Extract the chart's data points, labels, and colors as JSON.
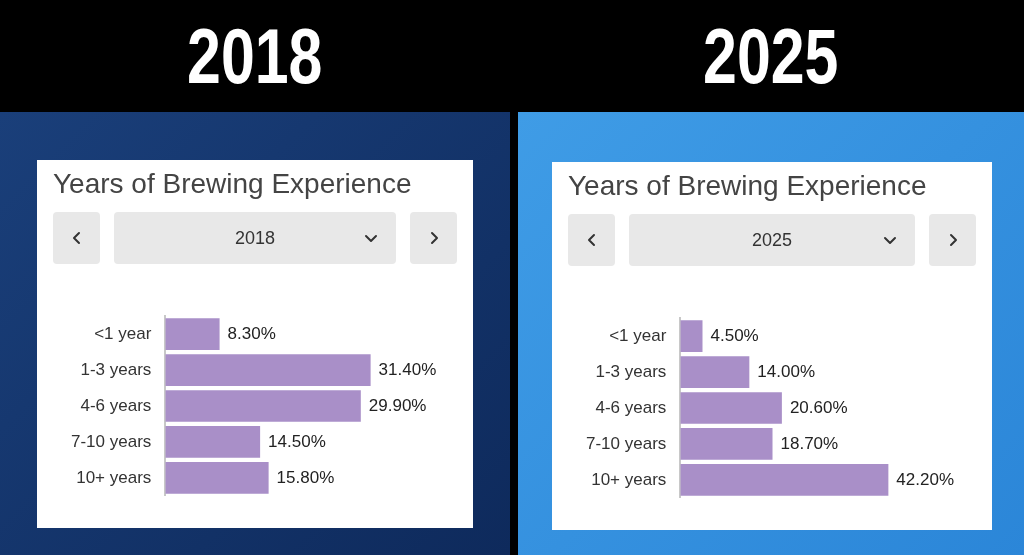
{
  "chart_data": [
    {
      "type": "bar",
      "orientation": "horizontal",
      "title": "2018",
      "subtitle": "Years of Brewing Experience",
      "annotations": [
        "2018"
      ],
      "categories": [
        "<1 year",
        "1-3 years",
        "4-6 years",
        "7-10 years",
        "10+ years"
      ],
      "values": [
        8.3,
        31.4,
        29.9,
        14.5,
        15.8
      ],
      "value_labels": [
        "8.30%",
        "31.40%",
        "29.90%",
        "14.50%",
        "15.80%"
      ],
      "color": "#a98fc8"
    },
    {
      "type": "bar",
      "orientation": "horizontal",
      "title": "2025",
      "subtitle": "Years of Brewing Experience",
      "annotations": [
        "2025"
      ],
      "categories": [
        "<1 year",
        "1-3 years",
        "4-6 years",
        "7-10 years",
        "10+ years"
      ],
      "values": [
        4.5,
        14.0,
        20.6,
        18.7,
        42.2
      ],
      "value_labels": [
        "4.50%",
        "14.00%",
        "20.60%",
        "18.70%",
        "42.20%"
      ],
      "color": "#a98fc8"
    }
  ]
}
